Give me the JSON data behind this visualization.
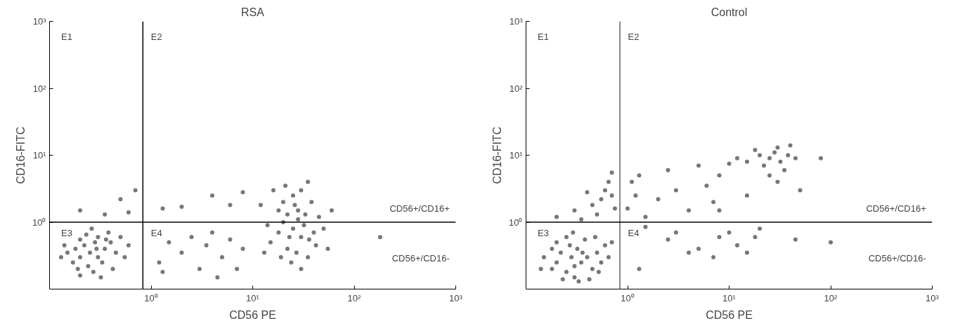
{
  "chart_data": [
    {
      "type": "scatter",
      "title": "RSA",
      "xlabel": "CD56 PE",
      "ylabel": "CD16-FITC",
      "log": "xy",
      "grid": false,
      "marker": "circle",
      "xlim": [
        0.1,
        1000
      ],
      "ylim": [
        0.1,
        1000
      ],
      "xticks": [
        {
          "value": 1,
          "label": "10⁰"
        },
        {
          "value": 10,
          "label": "10¹"
        },
        {
          "value": 100,
          "label": "10²"
        },
        {
          "value": 1000,
          "label": "10³"
        }
      ],
      "yticks": [
        {
          "value": 1,
          "label": "10⁰"
        },
        {
          "value": 10,
          "label": "10¹"
        },
        {
          "value": 100,
          "label": "10²"
        },
        {
          "value": 1000,
          "label": "10³"
        }
      ],
      "ref_lines": [
        {
          "axis": "x",
          "value": 0.83,
          "color": "#000000"
        },
        {
          "axis": "y",
          "value": 1,
          "color": "#000000"
        }
      ],
      "annotations": [
        "E1",
        "E2",
        "E3",
        "E4",
        "CD56+/CD16+",
        "CD56+/CD16-"
      ],
      "series": [
        {
          "color": "#555555",
          "x": [
            0.15,
            0.18,
            0.2,
            0.22,
            0.25,
            0.28,
            0.3,
            0.2,
            0.17,
            0.24,
            0.3,
            0.35,
            0.33,
            0.4,
            0.45,
            0.27,
            0.2,
            0.14,
            0.13,
            0.38,
            0.5,
            0.55,
            0.23,
            0.32,
            0.42,
            0.6,
            0.26,
            0.19,
            0.36,
            0.29,
            0.2,
            0.35,
            0.5,
            0.6,
            0.7,
            1.2,
            1.5,
            2,
            2.5,
            3,
            3.5,
            4,
            5,
            6,
            7,
            8,
            1.3,
            4.5,
            1.3,
            2,
            4,
            6,
            8,
            15,
            18,
            20,
            22,
            25,
            28,
            30,
            20,
            25,
            30,
            35,
            18,
            22,
            27,
            32,
            40,
            45,
            38,
            16,
            12,
            14,
            24,
            30,
            35,
            42,
            50,
            60,
            28,
            23,
            26,
            33,
            19,
            36,
            21,
            13,
            55,
            180
          ],
          "values": [
            0.35,
            0.4,
            0.3,
            0.45,
            0.35,
            0.5,
            0.3,
            0.55,
            0.25,
            0.22,
            0.6,
            0.4,
            0.25,
            0.5,
            0.35,
            0.18,
            0.16,
            0.45,
            0.3,
            0.7,
            0.6,
            0.3,
            0.65,
            0.15,
            0.2,
            0.45,
            0.8,
            0.2,
            0.55,
            0.4,
            1.5,
            1.3,
            2.2,
            1.4,
            3,
            0.25,
            0.5,
            0.35,
            0.6,
            0.2,
            0.45,
            0.7,
            0.3,
            0.55,
            0.2,
            0.4,
            0.18,
            0.15,
            1.6,
            1.7,
            2.5,
            1.8,
            2.8,
            0.5,
            0.7,
            1,
            1.3,
            0.8,
            1.5,
            0.6,
            2,
            2.5,
            3,
            4,
            1.5,
            0.4,
            0.35,
            0.9,
            0.7,
            1.2,
            2,
            3,
            1.8,
            0.9,
            0.25,
            0.2,
            0.3,
            0.45,
            0.8,
            1.5,
            1.1,
            0.6,
            1.8,
            1.3,
            0.3,
            0.55,
            3.5,
            0.35,
            0.4,
            0.6
          ]
        }
      ]
    },
    {
      "type": "scatter",
      "title": "Control",
      "xlabel": "CD56 PE",
      "ylabel": "CD16-FITC",
      "log": "xy",
      "grid": false,
      "marker": "circle",
      "xlim": [
        0.1,
        1000
      ],
      "ylim": [
        0.1,
        1000
      ],
      "xticks": [
        {
          "value": 1,
          "label": "10⁰"
        },
        {
          "value": 10,
          "label": "10¹"
        },
        {
          "value": 100,
          "label": "10²"
        },
        {
          "value": 1000,
          "label": "10³"
        }
      ],
      "yticks": [
        {
          "value": 1,
          "label": "10⁰"
        },
        {
          "value": 10,
          "label": "10¹"
        },
        {
          "value": 100,
          "label": "10²"
        },
        {
          "value": 1000,
          "label": "10³"
        }
      ],
      "ref_lines": [
        {
          "axis": "x",
          "value": 0.84,
          "color": "#666666"
        },
        {
          "axis": "y",
          "value": 1,
          "color": "#000000"
        }
      ],
      "annotations": [
        "E1",
        "E2",
        "E3",
        "E4",
        "CD56+/CD16+",
        "CD56+/CD16-"
      ],
      "series": [
        {
          "color": "#555555",
          "x": [
            0.15,
            0.18,
            0.2,
            0.22,
            0.25,
            0.28,
            0.3,
            0.32,
            0.35,
            0.4,
            0.45,
            0.5,
            0.55,
            0.6,
            0.2,
            0.25,
            0.3,
            0.38,
            0.42,
            0.18,
            0.14,
            0.27,
            0.33,
            0.48,
            0.65,
            0.7,
            0.23,
            0.36,
            0.29,
            0.52,
            0.2,
            0.3,
            0.35,
            0.45,
            0.5,
            0.55,
            0.6,
            0.65,
            0.7,
            0.75,
            0.4,
            0.7,
            1.0,
            1.1,
            1.2,
            1.3,
            1.5,
            2,
            2.5,
            3,
            4,
            5,
            6,
            7,
            8,
            10,
            12,
            15,
            18,
            20,
            22,
            25,
            28,
            30,
            32,
            35,
            38,
            40,
            25,
            30,
            45,
            80,
            15,
            8,
            50,
            1.5,
            2.5,
            3,
            5,
            7,
            8,
            10,
            12,
            15,
            18,
            20,
            45,
            100,
            4,
            1.3
          ],
          "values": [
            0.3,
            0.2,
            0.25,
            0.35,
            0.18,
            0.3,
            0.22,
            0.4,
            0.25,
            0.3,
            0.2,
            0.35,
            0.25,
            0.45,
            0.5,
            0.6,
            0.15,
            0.55,
            0.14,
            0.4,
            0.2,
            0.45,
            0.13,
            0.6,
            0.3,
            0.5,
            0.14,
            0.35,
            0.7,
            0.18,
            1.2,
            1.5,
            1.1,
            1.8,
            1.3,
            2.2,
            3,
            4,
            2.5,
            1.6,
            2.8,
            5.5,
            1.6,
            4,
            2.5,
            5,
            1.2,
            2.2,
            6,
            3,
            1.5,
            7,
            3.5,
            2,
            5,
            7.5,
            9,
            8,
            12,
            10,
            7,
            9,
            11,
            13,
            8,
            6,
            10,
            14,
            5,
            4,
            9,
            9,
            2.5,
            1.5,
            3,
            0.85,
            0.55,
            0.7,
            0.4,
            0.3,
            0.6,
            0.7,
            0.45,
            0.35,
            0.6,
            0.8,
            0.55,
            0.5,
            0.35,
            0.2
          ]
        }
      ]
    }
  ]
}
